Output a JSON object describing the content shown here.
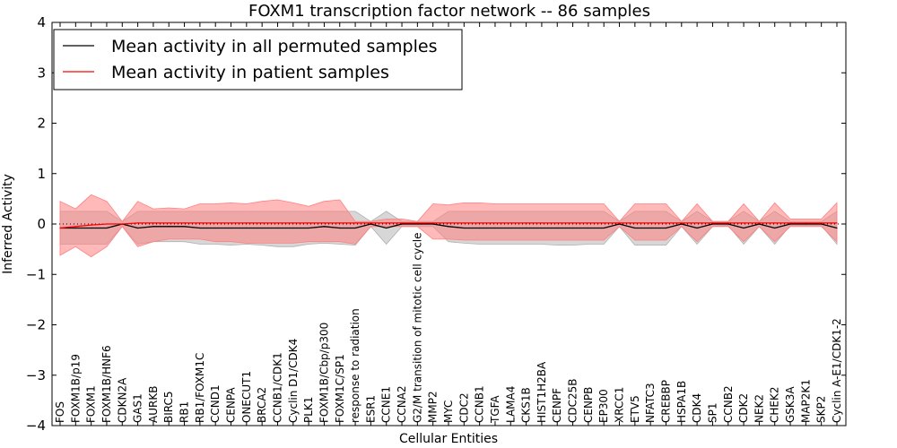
{
  "chart_data": {
    "type": "line",
    "title": "FOXM1 transcription factor network -- 86 samples",
    "xlabel": "Cellular Entities",
    "ylabel": "Inferred Activity",
    "ylim": [
      -4,
      4
    ],
    "yticks": [
      "−4",
      "−3",
      "−2",
      "−1",
      "0",
      "1",
      "2",
      "3",
      "4"
    ],
    "legend_position": "top-left",
    "categories": [
      "FOS",
      "FOXM1B/p19",
      "FOXM1",
      "FOXM1B/HNF6",
      "CDKN2A",
      "GAS1",
      "AURKB",
      "BIRC5",
      "RB1",
      "RB1/FOXM1C",
      "CCND1",
      "CENPA",
      "ONECUT1",
      "BRCA2",
      "CCNB1/CDK1",
      "Cyclin D1/CDK4",
      "PLK1",
      "FOXM1B/Cbp/p300",
      "FOXM1C/SP1",
      "response to radiation",
      "ESR1",
      "CCNE1",
      "CCNA2",
      "G2/M transition of mitotic cell cycle",
      "MMP2",
      "MYC",
      "CDC2",
      "CCNB1",
      "TGFA",
      "LAMA4",
      "CKS1B",
      "HIST1H2BA",
      "CENPF",
      "CDC25B",
      "CENPB",
      "EP300",
      "XRCC1",
      "ETV5",
      "NFATC3",
      "CREBBP",
      "HSPA1B",
      "CDK4",
      "SP1",
      "CCNB2",
      "CDK2",
      "NEK2",
      "CHEK2",
      "GSK3A",
      "MAP2K1",
      "SKP2",
      "Cyclin A-E1/CDK1-2"
    ],
    "series": [
      {
        "name": "Mean activity in all permuted samples",
        "color": "#000000",
        "band_color": "#b0b0b0",
        "values": [
          -0.08,
          -0.08,
          -0.08,
          -0.08,
          0.0,
          -0.08,
          -0.05,
          -0.05,
          -0.05,
          -0.08,
          -0.08,
          -0.08,
          -0.08,
          -0.08,
          -0.08,
          -0.08,
          -0.08,
          -0.05,
          -0.08,
          -0.08,
          0.0,
          -0.08,
          0.0,
          0.0,
          0.0,
          -0.05,
          -0.08,
          -0.08,
          -0.08,
          -0.08,
          -0.08,
          -0.08,
          -0.08,
          -0.08,
          -0.08,
          -0.08,
          0.0,
          -0.08,
          -0.08,
          -0.08,
          0.0,
          -0.08,
          0.0,
          0.0,
          -0.08,
          0.0,
          -0.08,
          0.0,
          0.0,
          0.0,
          -0.08
        ],
        "lower": [
          -0.4,
          -0.4,
          -0.4,
          -0.4,
          -0.05,
          -0.4,
          -0.35,
          -0.35,
          -0.35,
          -0.4,
          -0.4,
          -0.42,
          -0.4,
          -0.42,
          -0.45,
          -0.45,
          -0.4,
          -0.38,
          -0.4,
          -0.42,
          -0.05,
          -0.4,
          -0.05,
          -0.05,
          -0.05,
          -0.35,
          -0.38,
          -0.4,
          -0.4,
          -0.4,
          -0.4,
          -0.4,
          -0.42,
          -0.42,
          -0.4,
          -0.4,
          -0.05,
          -0.42,
          -0.42,
          -0.42,
          -0.05,
          -0.4,
          -0.05,
          -0.03,
          -0.4,
          -0.05,
          -0.4,
          -0.03,
          -0.03,
          -0.03,
          -0.4
        ],
        "upper": [
          0.25,
          0.25,
          0.25,
          0.25,
          0.05,
          0.25,
          0.25,
          0.25,
          0.25,
          0.25,
          0.25,
          0.25,
          0.25,
          0.25,
          0.25,
          0.25,
          0.25,
          0.25,
          0.25,
          0.25,
          0.05,
          0.25,
          0.05,
          0.05,
          0.05,
          0.25,
          0.25,
          0.25,
          0.25,
          0.25,
          0.25,
          0.25,
          0.25,
          0.25,
          0.25,
          0.25,
          0.05,
          0.25,
          0.25,
          0.25,
          0.05,
          0.25,
          0.05,
          0.05,
          0.25,
          0.05,
          0.25,
          0.05,
          0.05,
          0.05,
          0.25
        ]
      },
      {
        "name": "Mean activity in patient samples",
        "color": "#ff0000",
        "band_color": "#ff8080",
        "values": [
          -0.08,
          -0.05,
          -0.02,
          0.0,
          0.0,
          0.02,
          0.02,
          0.02,
          0.02,
          0.02,
          0.02,
          0.02,
          0.02,
          0.02,
          0.02,
          0.02,
          0.02,
          0.02,
          0.02,
          0.02,
          0.02,
          0.02,
          0.02,
          0.02,
          0.02,
          0.02,
          0.02,
          0.02,
          0.02,
          0.02,
          0.02,
          0.02,
          0.02,
          0.02,
          0.02,
          0.02,
          0.02,
          0.02,
          0.02,
          0.02,
          0.02,
          0.02,
          0.02,
          0.02,
          0.02,
          0.02,
          0.02,
          0.02,
          0.02,
          0.02,
          0.02
        ],
        "lower": [
          -0.62,
          -0.45,
          -0.65,
          -0.45,
          -0.05,
          -0.45,
          -0.35,
          -0.3,
          -0.3,
          -0.3,
          -0.35,
          -0.35,
          -0.38,
          -0.38,
          -0.38,
          -0.38,
          -0.35,
          -0.35,
          -0.35,
          -0.4,
          -0.05,
          -0.05,
          -0.05,
          -0.05,
          -0.3,
          -0.3,
          -0.32,
          -0.32,
          -0.32,
          -0.32,
          -0.32,
          -0.32,
          -0.32,
          -0.32,
          -0.32,
          -0.32,
          -0.05,
          -0.32,
          -0.32,
          -0.32,
          -0.05,
          -0.35,
          -0.05,
          -0.05,
          -0.35,
          -0.05,
          -0.35,
          -0.05,
          -0.05,
          -0.05,
          -0.35
        ],
        "upper": [
          0.45,
          0.3,
          0.58,
          0.45,
          0.05,
          0.45,
          0.3,
          0.32,
          0.3,
          0.4,
          0.4,
          0.42,
          0.4,
          0.45,
          0.48,
          0.42,
          0.35,
          0.45,
          0.48,
          0.05,
          0.05,
          0.1,
          0.1,
          0.05,
          0.4,
          0.38,
          0.42,
          0.42,
          0.4,
          0.4,
          0.4,
          0.4,
          0.4,
          0.4,
          0.4,
          0.4,
          0.05,
          0.4,
          0.4,
          0.4,
          0.05,
          0.4,
          0.05,
          0.05,
          0.4,
          0.05,
          0.42,
          0.1,
          0.1,
          0.1,
          0.42
        ]
      }
    ]
  }
}
